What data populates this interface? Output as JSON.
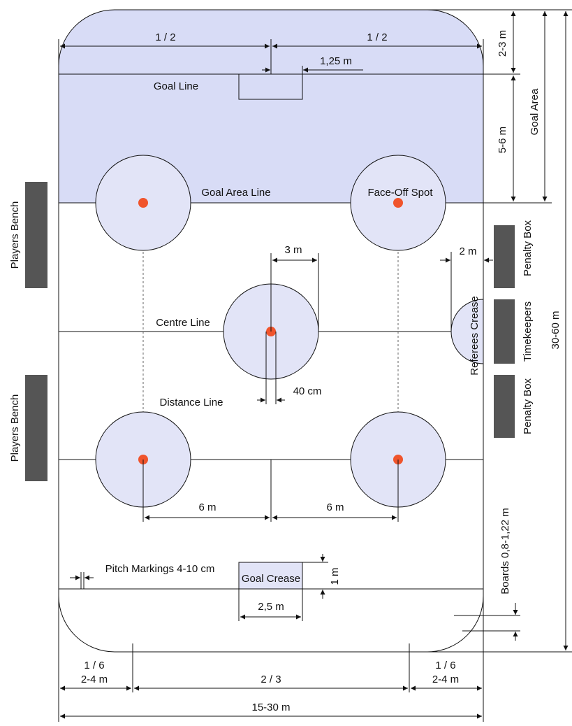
{
  "colors": {
    "goal_area_fill": "#d8dcf6",
    "circle_fill": "#e2e4f7",
    "spot": "#f0542c",
    "bench": "#555555",
    "line": "#111111"
  },
  "labels": {
    "top_half_left": "1 / 2",
    "top_half_right": "1 / 2",
    "goal_width": "1,25 m",
    "goal_line": "Goal Line",
    "goal_area_line": "Goal Area Line",
    "face_off_spot": "Face-Off Spot",
    "dim_2_3": "2-3 m",
    "dim_5_6": "5-6 m",
    "goal_area": "Goal Area",
    "rink_length": "30-60 m",
    "penalty_box_top": "Penalty Box",
    "timekeepers": "Timekeepers",
    "penalty_box_bottom": "Penalty Box",
    "referees_crease": "Referees Crease",
    "referees_dim": "2 m",
    "center_radius": "3 m",
    "centre_line": "Centre Line",
    "distance_line": "Distance Line",
    "spot_diameter": "40 cm",
    "players_bench_top": "Players Bench",
    "players_bench_bottom": "Players Bench",
    "spot_dist_left": "6 m",
    "spot_dist_right": "6 m",
    "pitch_markings": "Pitch Markings 4-10 cm",
    "goal_crease": "Goal Crease",
    "crease_depth": "1 m",
    "crease_width": "2,5 m",
    "boards": "Boards 0,8-1,22 m",
    "corner_left_frac": "1 / 6",
    "corner_left_m": "2-4 m",
    "middle_frac": "2 / 3",
    "corner_right_frac": "1 / 6",
    "corner_right_m": "2-4 m",
    "total_width": "15-30 m"
  }
}
